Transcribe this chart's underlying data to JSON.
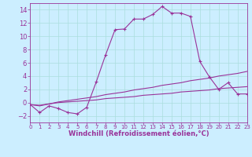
{
  "xlabel": "Windchill (Refroidissement éolien,°C)",
  "background_color": "#cceeff",
  "line_color": "#993399",
  "ylim": [
    -3,
    15
  ],
  "xlim": [
    0,
    23
  ],
  "yticks": [
    -2,
    0,
    2,
    4,
    6,
    8,
    10,
    12,
    14
  ],
  "xticks": [
    0,
    1,
    2,
    3,
    4,
    5,
    6,
    7,
    8,
    9,
    10,
    11,
    12,
    13,
    14,
    15,
    16,
    17,
    18,
    19,
    20,
    21,
    22,
    23
  ],
  "series_main": {
    "x": [
      0,
      1,
      2,
      3,
      4,
      5,
      6,
      7,
      8,
      9,
      10,
      11,
      12,
      13,
      14,
      15,
      16,
      17,
      18,
      19,
      20,
      21,
      22,
      23
    ],
    "y": [
      -0.3,
      -1.5,
      -0.5,
      -0.9,
      -1.5,
      -1.7,
      -0.7,
      3.1,
      7.2,
      11.0,
      11.1,
      12.6,
      12.6,
      13.3,
      14.5,
      13.5,
      13.5,
      13.0,
      6.2,
      3.9,
      2.0,
      3.0,
      1.3,
      1.3
    ]
  },
  "series_line2": {
    "x": [
      0,
      1,
      2,
      3,
      4,
      5,
      6,
      7,
      8,
      9,
      10,
      11,
      12,
      13,
      14,
      15,
      16,
      17,
      18,
      19,
      20,
      21,
      22,
      23
    ],
    "y": [
      -0.3,
      -0.5,
      -0.2,
      0.1,
      0.3,
      0.5,
      0.7,
      0.9,
      1.2,
      1.4,
      1.6,
      1.9,
      2.1,
      2.3,
      2.6,
      2.8,
      3.0,
      3.3,
      3.5,
      3.7,
      4.0,
      4.2,
      4.4,
      4.7
    ]
  },
  "series_line3": {
    "x": [
      0,
      1,
      2,
      3,
      4,
      5,
      6,
      7,
      8,
      9,
      10,
      11,
      12,
      13,
      14,
      15,
      16,
      17,
      18,
      19,
      20,
      21,
      22,
      23
    ],
    "y": [
      -0.3,
      -0.4,
      -0.2,
      0.0,
      0.1,
      0.2,
      0.3,
      0.4,
      0.6,
      0.7,
      0.8,
      0.9,
      1.1,
      1.2,
      1.3,
      1.4,
      1.6,
      1.7,
      1.8,
      1.9,
      2.1,
      2.2,
      2.3,
      2.4
    ]
  },
  "grid_color": "#aadddd",
  "xlabel_fontsize": 6,
  "tick_fontsize_x": 5,
  "tick_fontsize_y": 6
}
